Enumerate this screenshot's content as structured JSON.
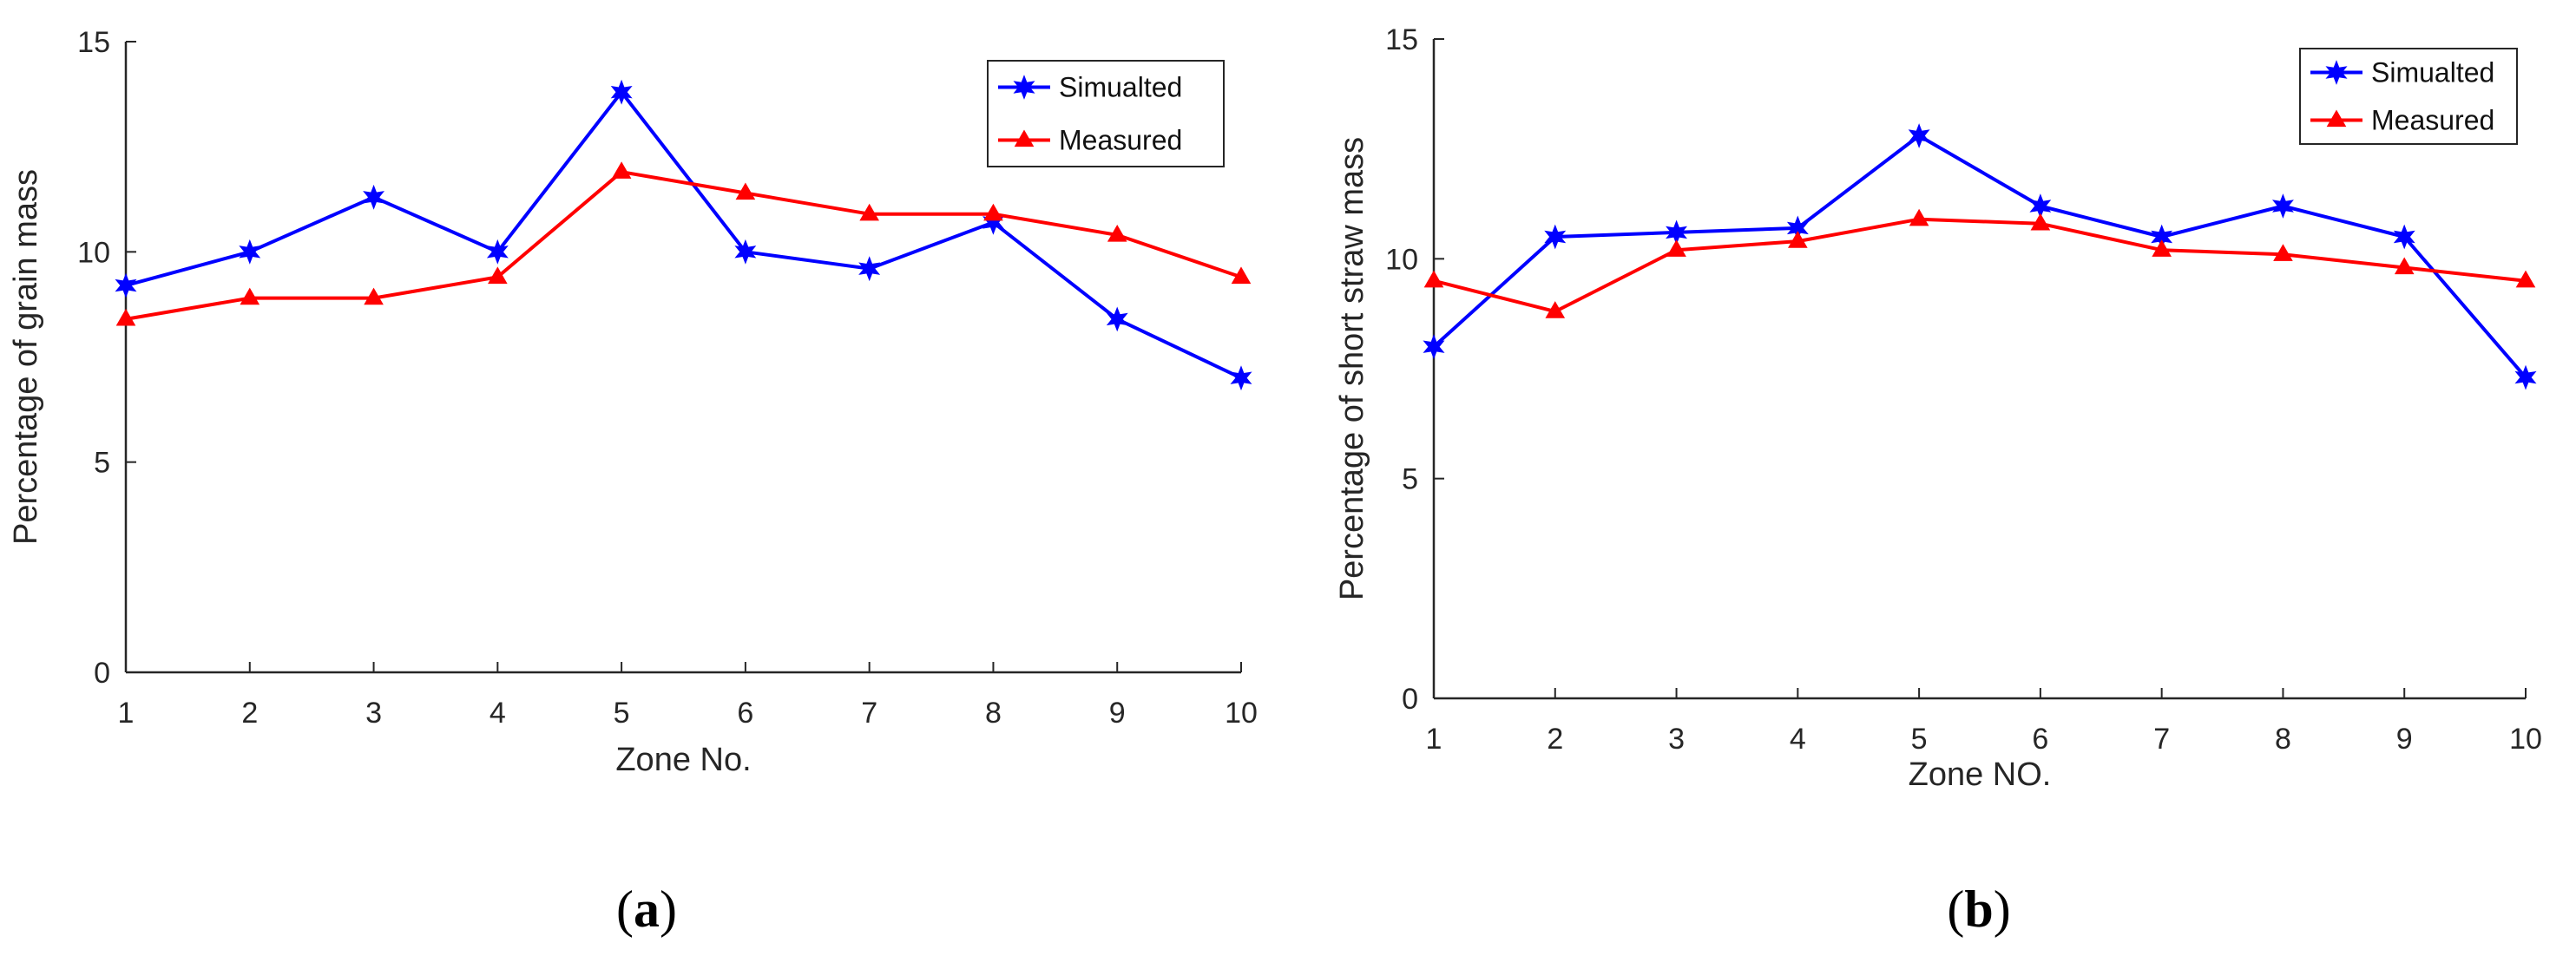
{
  "chart_data": [
    {
      "type": "line",
      "panel": "a",
      "caption_letter": "a",
      "x": [
        1,
        2,
        3,
        4,
        5,
        6,
        7,
        8,
        9,
        10
      ],
      "xlabel": "Zone No.",
      "ylabel": "Percentage of grain mass",
      "xlim": [
        1,
        10
      ],
      "ylim": [
        0,
        15
      ],
      "yticks": [
        0,
        5,
        10,
        15
      ],
      "legend_position": "top-right",
      "series": [
        {
          "name": "Simualted",
          "color": "#0000ff",
          "marker": "star",
          "values": [
            9.2,
            10.0,
            11.3,
            10.0,
            13.8,
            10.0,
            9.6,
            10.7,
            8.4,
            7.0
          ]
        },
        {
          "name": "Measured",
          "color": "#ff0000",
          "marker": "triangle",
          "values": [
            8.4,
            8.9,
            8.9,
            9.4,
            11.9,
            11.4,
            10.9,
            10.9,
            10.4,
            9.4
          ]
        }
      ]
    },
    {
      "type": "line",
      "panel": "b",
      "caption_letter": "b",
      "x": [
        1,
        2,
        3,
        4,
        5,
        6,
        7,
        8,
        9,
        10
      ],
      "xlabel": "Zone NO.",
      "ylabel": "Percentage of short straw mass",
      "xlim": [
        1,
        10
      ],
      "ylim": [
        0,
        15
      ],
      "yticks": [
        0,
        5,
        10,
        15
      ],
      "legend_position": "top-right",
      "series": [
        {
          "name": "Simualted",
          "color": "#0000ff",
          "marker": "star",
          "values": [
            8.0,
            10.5,
            10.6,
            10.7,
            12.8,
            11.2,
            10.5,
            11.2,
            10.5,
            7.3
          ]
        },
        {
          "name": "Measured",
          "color": "#ff0000",
          "marker": "triangle",
          "values": [
            9.5,
            8.8,
            10.2,
            10.4,
            10.9,
            10.8,
            10.2,
            10.1,
            9.8,
            9.5
          ]
        }
      ]
    }
  ]
}
